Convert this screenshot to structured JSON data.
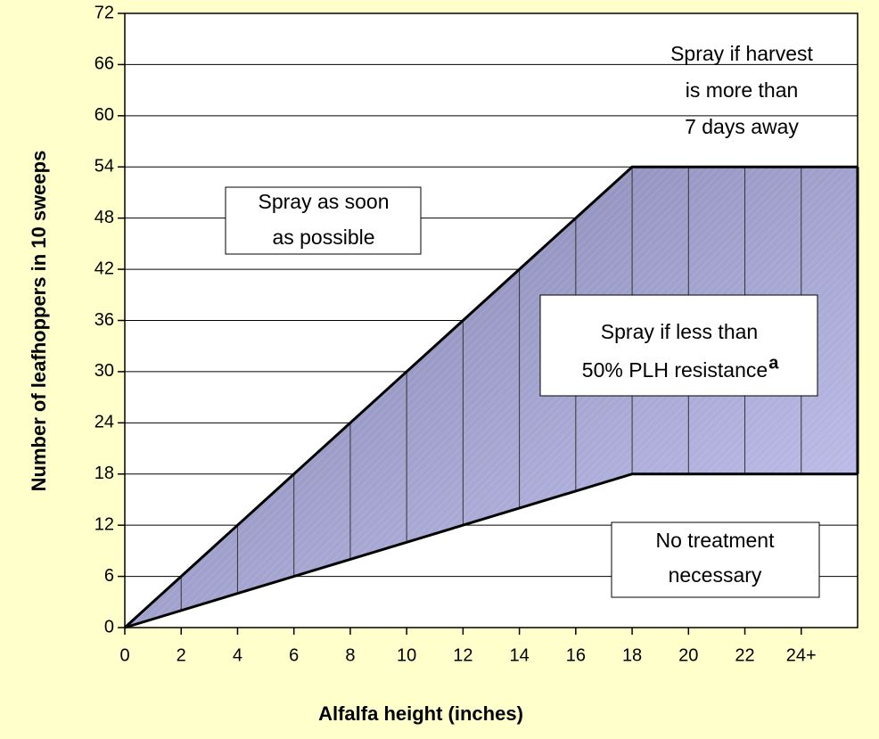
{
  "chart_data": {
    "type": "area",
    "x_label": "Alfalfa height (inches)",
    "y_label": "Number of leafhoppers in 10 sweeps",
    "series": [
      {
        "x": [
          0,
          18,
          26
        ],
        "values": [
          0,
          54,
          54
        ]
      },
      {
        "x": [
          0,
          18,
          26
        ],
        "values": [
          0,
          18,
          18
        ]
      }
    ],
    "fill_colors": [
      "#7a7aa6",
      "#c8c8f4"
    ],
    "xlim": [
      0,
      26
    ],
    "xticks": [
      0,
      2,
      4,
      6,
      8,
      10,
      12,
      14,
      16,
      18,
      20,
      22,
      {
        "value": 24,
        "label": "24+"
      }
    ],
    "ylim": [
      0,
      72
    ],
    "yticks": [
      0,
      6,
      12,
      18,
      24,
      30,
      36,
      42,
      48,
      54,
      60,
      66,
      72
    ],
    "grid": true,
    "annotations": [
      {
        "lines": [
          "Spray if harvest",
          "is more than",
          "7 days away"
        ]
      },
      {
        "lines": [
          "Spray as soon",
          "as possible"
        ]
      },
      {
        "lines": [
          "Spray if less than",
          "50% PLH resistance"
        ],
        "superscript": "a"
      },
      {
        "lines": [
          "No treatment",
          "necessary"
        ]
      }
    ]
  }
}
